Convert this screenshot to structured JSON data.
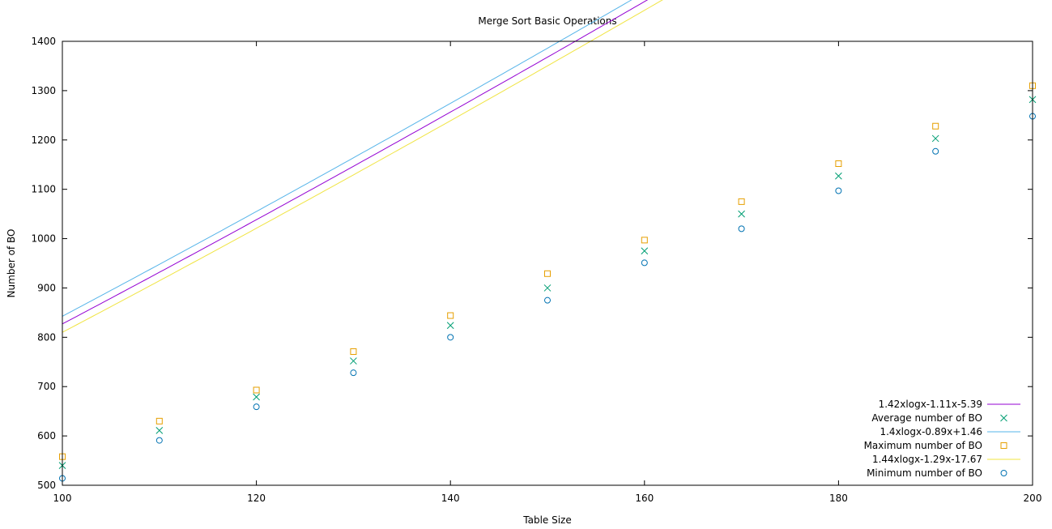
{
  "chart_data": {
    "type": "scatter",
    "title": "Merge Sort Basic Operations",
    "xlabel": "Table Size",
    "ylabel": "Number of BO",
    "xlim": [
      100,
      200
    ],
    "ylim": [
      500,
      1400
    ],
    "xticks": [
      100,
      120,
      140,
      160,
      180,
      200
    ],
    "yticks": [
      500,
      600,
      700,
      800,
      900,
      1000,
      1100,
      1200,
      1300,
      1400
    ],
    "grid": false,
    "legend_position": "bottom-right",
    "x": [
      100,
      110,
      120,
      130,
      140,
      150,
      160,
      170,
      180,
      190,
      200
    ],
    "series": [
      {
        "name": "1.42xlogx-1.11x-5.39",
        "kind": "line",
        "color": "#9400d3",
        "formula": {
          "a": 1.42,
          "b": -1.11,
          "c": -5.39
        }
      },
      {
        "name": "Average number of BO",
        "kind": "points",
        "marker": "cross",
        "color": "#009e73",
        "values": [
          540,
          611,
          679,
          752,
          824,
          900,
          975,
          1050,
          1127,
          1203,
          1282
        ]
      },
      {
        "name": "1.4xlogx-0.89x+1.46",
        "kind": "line",
        "color": "#56b4e9",
        "formula": {
          "a": 1.4,
          "b": -0.89,
          "c": 1.46
        }
      },
      {
        "name": "Maximum number of BO",
        "kind": "points",
        "marker": "square",
        "color": "#e69f00",
        "values": [
          558,
          630,
          693,
          771,
          844,
          929,
          997,
          1075,
          1152,
          1228,
          1310
        ]
      },
      {
        "name": "1.44xlogx-1.29x-17.67",
        "kind": "line",
        "color": "#f0e442",
        "formula": {
          "a": 1.44,
          "b": -1.29,
          "c": -17.67
        }
      },
      {
        "name": "Minimum number of BO",
        "kind": "points",
        "marker": "circle",
        "color": "#0072b2",
        "values": [
          514,
          591,
          659,
          728,
          800,
          875,
          951,
          1020,
          1097,
          1177,
          1248
        ]
      }
    ]
  }
}
